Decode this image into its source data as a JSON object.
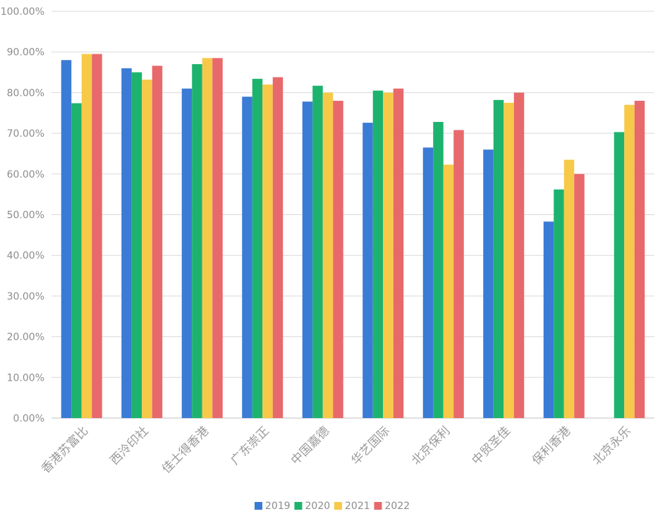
{
  "chart_data": {
    "type": "bar",
    "title": "",
    "xlabel": "",
    "ylabel": "",
    "ylim": [
      0,
      100
    ],
    "yticks": [
      "0.00%",
      "10.00%",
      "20.00%",
      "30.00%",
      "40.00%",
      "50.00%",
      "60.00%",
      "70.00%",
      "80.00%",
      "90.00%",
      "100.00%"
    ],
    "grid": true,
    "legend_position": "bottom",
    "categories": [
      "香港苏富比",
      "西泠印社",
      "佳士得香港",
      "广东崇正",
      "中国嘉德",
      "华艺国际",
      "北京保利",
      "中贸圣佳",
      "保利香港",
      "北京永乐"
    ],
    "series": [
      {
        "name": "2019",
        "color": "#3a7bd5",
        "values": [
          88.0,
          86.0,
          81.0,
          79.0,
          77.8,
          72.6,
          66.5,
          66.0,
          48.3,
          null
        ]
      },
      {
        "name": "2020",
        "color": "#1db36e",
        "values": [
          77.4,
          85.0,
          87.0,
          83.4,
          81.7,
          80.5,
          72.8,
          78.2,
          56.2,
          70.3
        ]
      },
      {
        "name": "2021",
        "color": "#f7c948",
        "values": [
          89.5,
          83.2,
          88.5,
          82.0,
          80.0,
          80.0,
          62.3,
          77.5,
          63.5,
          77.0
        ]
      },
      {
        "name": "2022",
        "color": "#e8696b",
        "values": [
          89.5,
          86.6,
          88.5,
          83.8,
          78.0,
          81.0,
          70.8,
          80.0,
          60.0,
          78.0
        ]
      }
    ]
  }
}
